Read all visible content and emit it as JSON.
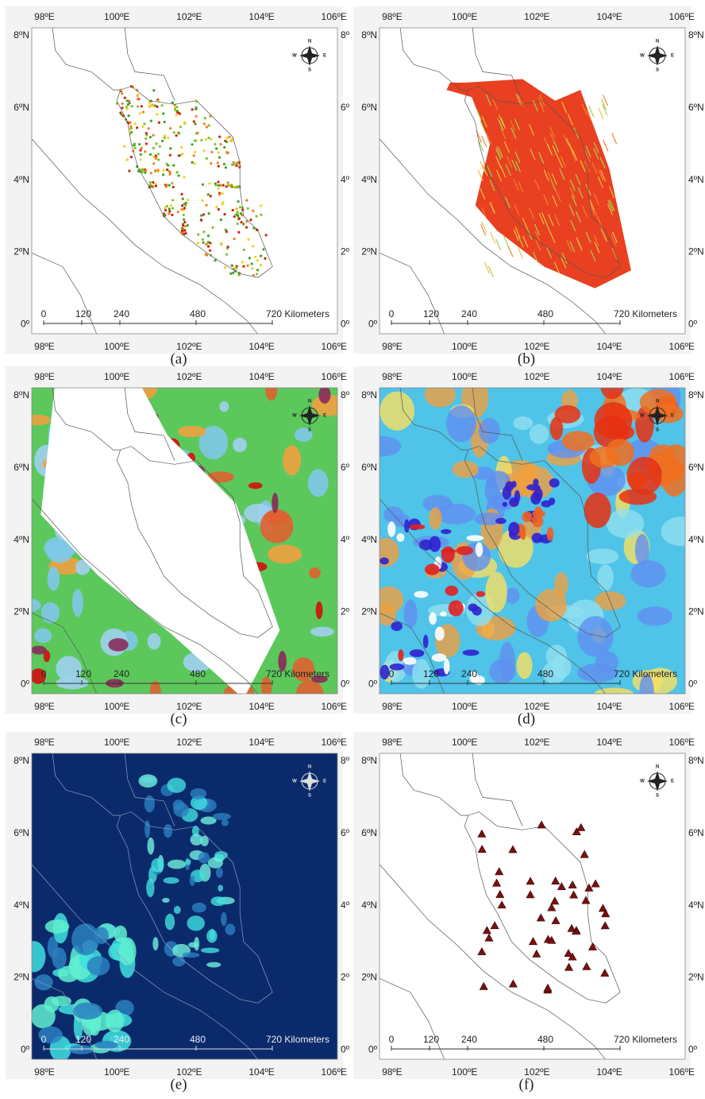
{
  "panels": [
    {
      "caption": "(a)",
      "right_lat_labels": [
        "8º",
        "6º",
        "4º",
        "2º",
        "0º"
      ]
    },
    {
      "caption": "(b)",
      "right_lat_labels": [
        "8ºN",
        "6ºN",
        "4ºN",
        "2ºN",
        "0º"
      ]
    },
    {
      "caption": "(c)",
      "right_lat_labels": [
        "8º",
        "6º",
        "4º",
        "2º",
        "0º"
      ]
    },
    {
      "caption": "(d)",
      "right_lat_labels": [
        "8ºN",
        "6ºN",
        "4ºN",
        "2ºN",
        "0º"
      ]
    },
    {
      "caption": "(e)",
      "right_lat_labels": [
        "8º",
        "6º",
        "4º",
        "2º",
        "0º"
      ]
    },
    {
      "caption": "(f)",
      "right_lat_labels": [
        "8ºN",
        "6ºN",
        "4ºN",
        "2ºN",
        "0º"
      ]
    }
  ],
  "lon_labels": [
    "98ºE",
    "100ºE",
    "102ºE",
    "104ºE",
    "106ºE"
  ],
  "lat_labels": [
    "8ºN",
    "6ºN",
    "4ºN",
    "2ºN",
    "0º"
  ],
  "scale_labels": [
    "0",
    "120",
    "240",
    "480",
    "720 Kilometers"
  ],
  "compass": {
    "n": "N",
    "w": "W",
    "e": "E",
    "s": "S"
  }
}
